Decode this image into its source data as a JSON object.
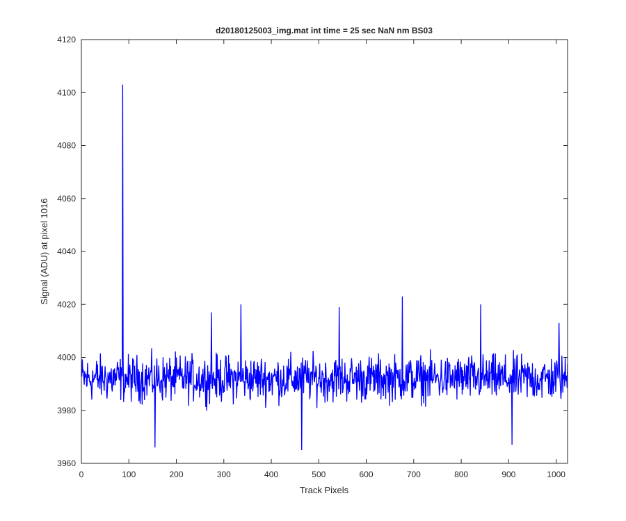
{
  "chart_data": {
    "type": "line",
    "title": "d20180125003_img.mat int time = 25 sec  NaN nm BS03",
    "xlabel": "Track Pixels",
    "ylabel": "Signal (ADU) at pixel 1016",
    "xlim": [
      0,
      1024
    ],
    "ylim": [
      3960,
      4120
    ],
    "xticks": [
      0,
      100,
      200,
      300,
      400,
      500,
      600,
      700,
      800,
      900,
      1000
    ],
    "yticks": [
      3960,
      3980,
      4000,
      4020,
      4040,
      4060,
      4080,
      4100,
      4120
    ],
    "grid": false,
    "legend": "none",
    "series": [
      {
        "color": "#0000ff",
        "x_start": 1,
        "x_step": 1,
        "mean": 3992,
        "noise_amplitude": 8,
        "points_count": 1024,
        "spikes": [
          {
            "x": 87,
            "y": 4103
          },
          {
            "x": 274,
            "y": 4017
          },
          {
            "x": 336,
            "y": 4020
          },
          {
            "x": 464,
            "y": 3965
          },
          {
            "x": 543,
            "y": 4019
          },
          {
            "x": 676,
            "y": 4023
          },
          {
            "x": 841,
            "y": 4020
          },
          {
            "x": 907,
            "y": 3967
          },
          {
            "x": 1006,
            "y": 4013
          },
          {
            "x": 155,
            "y": 3966
          }
        ]
      }
    ]
  }
}
